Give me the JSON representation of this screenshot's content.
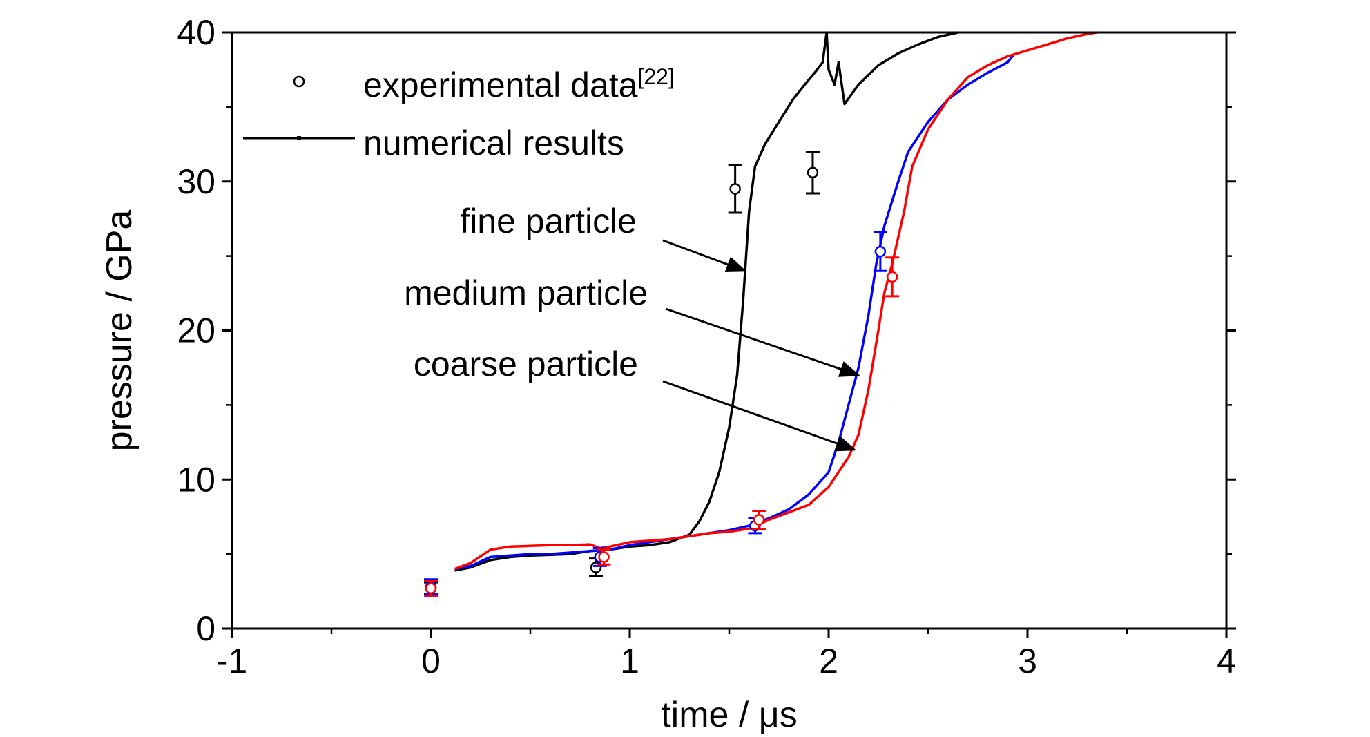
{
  "chart_data": {
    "type": "line",
    "xlabel": "time / μs",
    "ylabel": "pressure / GPa",
    "xlim": [
      -1,
      4
    ],
    "ylim": [
      0,
      40
    ],
    "x_ticks": [
      -1,
      0,
      1,
      2,
      3,
      4
    ],
    "y_ticks": [
      0,
      10,
      20,
      30,
      40
    ],
    "grid": false,
    "legend": {
      "position": "top-left",
      "entries": [
        {
          "label": "experimental data",
          "superscript": "[22]",
          "marker": "open-circle"
        },
        {
          "label": "numerical results",
          "marker": "line"
        }
      ]
    },
    "annotations": [
      {
        "text": "fine particle",
        "arrow_to": [
          1.58,
          24
        ]
      },
      {
        "text": "medium particle",
        "arrow_to": [
          2.15,
          17
        ]
      },
      {
        "text": "coarse particle",
        "arrow_to": [
          2.13,
          12
        ]
      }
    ],
    "series": [
      {
        "color": "#000000",
        "points": [
          [
            0.12,
            3.9
          ],
          [
            0.2,
            4.1
          ],
          [
            0.3,
            4.6
          ],
          [
            0.4,
            4.8
          ],
          [
            0.5,
            4.9
          ],
          [
            0.6,
            4.95
          ],
          [
            0.7,
            5.0
          ],
          [
            0.8,
            5.2
          ],
          [
            0.9,
            5.3
          ],
          [
            1.0,
            5.5
          ],
          [
            1.1,
            5.6
          ],
          [
            1.2,
            5.8
          ],
          [
            1.3,
            6.3
          ],
          [
            1.35,
            7.2
          ],
          [
            1.4,
            8.5
          ],
          [
            1.45,
            10.5
          ],
          [
            1.5,
            13.5
          ],
          [
            1.54,
            17
          ],
          [
            1.57,
            22
          ],
          [
            1.6,
            28
          ],
          [
            1.63,
            31
          ],
          [
            1.68,
            32.5
          ],
          [
            1.75,
            34
          ],
          [
            1.82,
            35.5
          ],
          [
            1.88,
            36.5
          ],
          [
            1.93,
            37.3
          ],
          [
            1.97,
            38
          ],
          [
            1.99,
            40
          ],
          [
            2.0,
            37.5
          ],
          [
            2.03,
            36.5
          ],
          [
            2.05,
            38
          ],
          [
            2.08,
            35.2
          ],
          [
            2.15,
            36.5
          ],
          [
            2.25,
            37.8
          ],
          [
            2.35,
            38.6
          ],
          [
            2.45,
            39.2
          ],
          [
            2.55,
            39.7
          ],
          [
            2.65,
            40
          ]
        ]
      },
      {
        "color": "#0000ff",
        "points": [
          [
            0.12,
            4.0
          ],
          [
            0.2,
            4.2
          ],
          [
            0.3,
            4.8
          ],
          [
            0.4,
            4.9
          ],
          [
            0.5,
            5.0
          ],
          [
            0.6,
            5.0
          ],
          [
            0.7,
            5.1
          ],
          [
            0.8,
            5.2
          ],
          [
            0.9,
            5.3
          ],
          [
            1.0,
            5.6
          ],
          [
            1.1,
            5.8
          ],
          [
            1.2,
            6.0
          ],
          [
            1.3,
            6.2
          ],
          [
            1.4,
            6.4
          ],
          [
            1.5,
            6.6
          ],
          [
            1.6,
            6.9
          ],
          [
            1.7,
            7.4
          ],
          [
            1.8,
            8.0
          ],
          [
            1.9,
            9.0
          ],
          [
            2.0,
            10.5
          ],
          [
            2.05,
            12.5
          ],
          [
            2.1,
            15.0
          ],
          [
            2.15,
            17.5
          ],
          [
            2.2,
            21.0
          ],
          [
            2.24,
            24.5
          ],
          [
            2.28,
            27.0
          ],
          [
            2.35,
            30.0
          ],
          [
            2.4,
            32.0
          ],
          [
            2.5,
            34.0
          ],
          [
            2.6,
            35.5
          ],
          [
            2.7,
            36.5
          ],
          [
            2.8,
            37.3
          ],
          [
            2.9,
            38.0
          ],
          [
            2.93,
            38.5
          ]
        ]
      },
      {
        "color": "#ff0000",
        "points": [
          [
            0.12,
            4.0
          ],
          [
            0.2,
            4.4
          ],
          [
            0.3,
            5.3
          ],
          [
            0.4,
            5.5
          ],
          [
            0.5,
            5.55
          ],
          [
            0.6,
            5.6
          ],
          [
            0.7,
            5.6
          ],
          [
            0.8,
            5.65
          ],
          [
            0.85,
            5.4
          ],
          [
            0.9,
            5.5
          ],
          [
            1.0,
            5.8
          ],
          [
            1.1,
            5.9
          ],
          [
            1.2,
            6.0
          ],
          [
            1.3,
            6.2
          ],
          [
            1.4,
            6.4
          ],
          [
            1.5,
            6.5
          ],
          [
            1.6,
            6.7
          ],
          [
            1.7,
            7.3
          ],
          [
            1.8,
            7.8
          ],
          [
            1.9,
            8.3
          ],
          [
            2.0,
            9.5
          ],
          [
            2.1,
            11.5
          ],
          [
            2.15,
            13.0
          ],
          [
            2.2,
            16.0
          ],
          [
            2.25,
            20.0
          ],
          [
            2.28,
            22.5
          ],
          [
            2.32,
            24.5
          ],
          [
            2.38,
            28.0
          ],
          [
            2.42,
            31.0
          ],
          [
            2.5,
            33.5
          ],
          [
            2.6,
            35.5
          ],
          [
            2.7,
            37.0
          ],
          [
            2.8,
            37.8
          ],
          [
            2.9,
            38.4
          ],
          [
            3.0,
            38.8
          ],
          [
            3.1,
            39.2
          ],
          [
            3.2,
            39.6
          ],
          [
            3.3,
            39.9
          ],
          [
            3.35,
            40.0
          ]
        ]
      }
    ],
    "experimental_points": [
      {
        "color": "#000000",
        "points": [
          [
            0.0,
            2.7,
            0.4
          ],
          [
            0.83,
            4.1,
            0.6
          ],
          [
            1.53,
            29.5,
            1.6
          ],
          [
            1.92,
            30.6,
            1.4
          ]
        ]
      },
      {
        "color": "#0000ff",
        "points": [
          [
            0.0,
            2.8,
            0.5
          ],
          [
            0.85,
            4.8,
            0.6
          ],
          [
            1.63,
            6.9,
            0.5
          ],
          [
            2.26,
            25.3,
            1.3
          ]
        ]
      },
      {
        "color": "#ff0000",
        "points": [
          [
            0.0,
            2.7,
            0.5
          ],
          [
            0.87,
            4.8,
            0.5
          ],
          [
            1.65,
            7.3,
            0.6
          ],
          [
            2.32,
            23.6,
            1.3
          ]
        ]
      }
    ]
  }
}
